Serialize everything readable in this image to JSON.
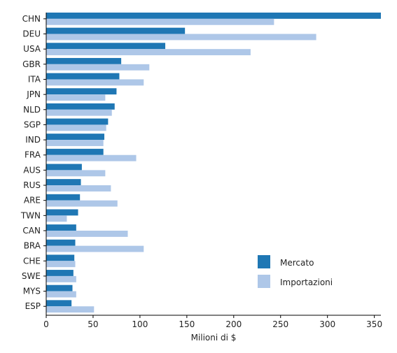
{
  "chart_data": {
    "type": "bar",
    "orientation": "horizontal",
    "categories": [
      "CHN",
      "DEU",
      "USA",
      "GBR",
      "ITA",
      "JPN",
      "NLD",
      "SGP",
      "IND",
      "FRA",
      "AUS",
      "RUS",
      "ARE",
      "TWN",
      "CAN",
      "BRA",
      "CHE",
      "SWE",
      "MYS",
      "ESP"
    ],
    "series": [
      {
        "name": "Mercato",
        "color": "#1f77b4",
        "values": [
          357,
          148,
          127,
          80,
          78,
          75,
          73,
          66,
          62,
          61,
          38,
          37,
          36,
          34,
          32,
          31,
          30,
          29,
          28,
          27
        ]
      },
      {
        "name": "Importazioni",
        "color": "#aec7e8",
        "values": [
          243,
          288,
          218,
          110,
          104,
          63,
          70,
          64,
          61,
          96,
          63,
          69,
          76,
          22,
          87,
          104,
          31,
          32,
          32,
          51
        ]
      }
    ],
    "xlabel": "Milioni di $",
    "ylabel": "",
    "title": "",
    "xlim": [
      0,
      357
    ],
    "xticks": [
      0,
      50,
      100,
      150,
      200,
      250,
      300,
      350
    ],
    "grid": false,
    "legend_position": "lower-right"
  }
}
